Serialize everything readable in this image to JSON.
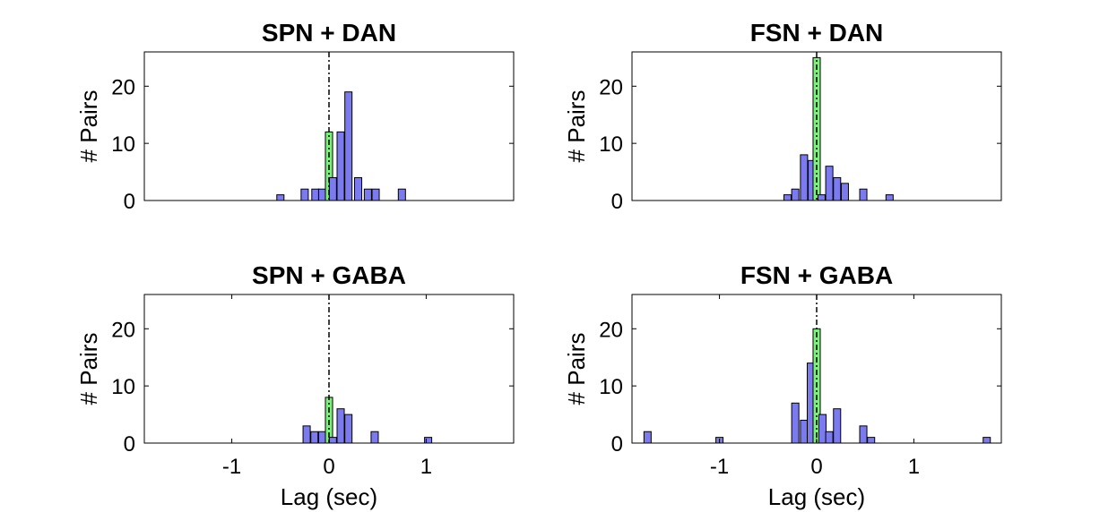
{
  "colors": {
    "offset_bar": "#7b7bef",
    "zero_bar": "#7cef7c",
    "zero_line": "#000000"
  },
  "chart_data": [
    {
      "type": "bar",
      "title": "SPN + DAN",
      "ylabel": "# Pairs",
      "xlabel": "",
      "xlim": [
        -1.9,
        1.9
      ],
      "ylim": [
        0,
        26
      ],
      "yticks": [
        0,
        10,
        20
      ],
      "xticks": [],
      "bin_width": 0.074,
      "bins": [
        {
          "x": -0.5,
          "count": 1
        },
        {
          "x": -0.25,
          "count": 2
        },
        {
          "x": -0.14,
          "count": 2
        },
        {
          "x": -0.07,
          "count": 2
        },
        {
          "x": 0.0,
          "count": 12,
          "zero_lag": true
        },
        {
          "x": 0.04,
          "count": 4
        },
        {
          "x": 0.12,
          "count": 12
        },
        {
          "x": 0.2,
          "count": 19
        },
        {
          "x": 0.3,
          "count": 4
        },
        {
          "x": 0.4,
          "count": 2
        },
        {
          "x": 0.48,
          "count": 2
        },
        {
          "x": 0.75,
          "count": 2
        }
      ]
    },
    {
      "type": "bar",
      "title": "FSN + DAN",
      "ylabel": "# Pairs",
      "xlabel": "",
      "xlim": [
        -1.9,
        1.9
      ],
      "ylim": [
        0,
        26
      ],
      "yticks": [
        0,
        10,
        20
      ],
      "xticks": [],
      "bin_width": 0.074,
      "bins": [
        {
          "x": -0.3,
          "count": 1
        },
        {
          "x": -0.22,
          "count": 2
        },
        {
          "x": -0.13,
          "count": 8
        },
        {
          "x": -0.05,
          "count": 7
        },
        {
          "x": 0.0,
          "count": 25,
          "zero_lag": true
        },
        {
          "x": 0.05,
          "count": 1
        },
        {
          "x": 0.13,
          "count": 6
        },
        {
          "x": 0.21,
          "count": 4
        },
        {
          "x": 0.29,
          "count": 3
        },
        {
          "x": 0.48,
          "count": 2
        },
        {
          "x": 0.75,
          "count": 1
        }
      ]
    },
    {
      "type": "bar",
      "title": "SPN + GABA",
      "ylabel": "# Pairs",
      "xlabel": "Lag (sec)",
      "xlim": [
        -1.9,
        1.9
      ],
      "ylim": [
        0,
        26
      ],
      "yticks": [
        0,
        10,
        20
      ],
      "xticks": [
        -1,
        0,
        1
      ],
      "bin_width": 0.074,
      "bins": [
        {
          "x": -0.23,
          "count": 3
        },
        {
          "x": -0.15,
          "count": 2
        },
        {
          "x": -0.07,
          "count": 2
        },
        {
          "x": 0.0,
          "count": 8,
          "zero_lag": true
        },
        {
          "x": 0.04,
          "count": 1
        },
        {
          "x": 0.12,
          "count": 6
        },
        {
          "x": 0.2,
          "count": 5
        },
        {
          "x": 0.47,
          "count": 2
        },
        {
          "x": 1.02,
          "count": 1
        }
      ]
    },
    {
      "type": "bar",
      "title": "FSN + GABA",
      "ylabel": "# Pairs",
      "xlabel": "Lag (sec)",
      "xlim": [
        -1.9,
        1.9
      ],
      "ylim": [
        0,
        26
      ],
      "yticks": [
        0,
        10,
        20
      ],
      "xticks": [
        -1,
        0,
        1
      ],
      "bin_width": 0.074,
      "bins": [
        {
          "x": -1.74,
          "count": 2
        },
        {
          "x": -1.0,
          "count": 1
        },
        {
          "x": -0.22,
          "count": 7
        },
        {
          "x": -0.13,
          "count": 4
        },
        {
          "x": -0.06,
          "count": 14
        },
        {
          "x": 0.0,
          "count": 20,
          "zero_lag": true
        },
        {
          "x": 0.06,
          "count": 5
        },
        {
          "x": 0.13,
          "count": 2
        },
        {
          "x": 0.21,
          "count": 6
        },
        {
          "x": 0.48,
          "count": 3
        },
        {
          "x": 0.56,
          "count": 1
        },
        {
          "x": 1.75,
          "count": 1
        }
      ]
    }
  ]
}
